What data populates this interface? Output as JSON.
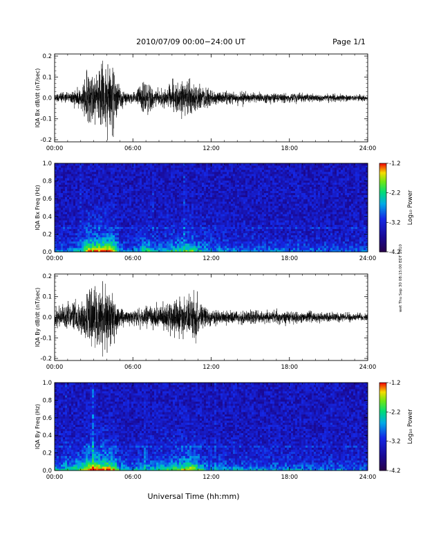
{
  "header": {
    "title": "2010/07/09  00:00−24:00 UT",
    "page": "Page 1/1"
  },
  "x_axis_title": "Universal Time (hh:mm)",
  "side_stamp": "wet Thu Sep 30 08:15:00 EDT 2010",
  "chart_data": [
    {
      "type": "line",
      "ylabel": "IQA Bx dB/dt (nT/sec)",
      "x_ticks": [
        "00:00",
        "06:00",
        "12:00",
        "18:00",
        "24:00"
      ],
      "y_ticks": [
        "-0.2",
        "-0.1",
        "0.0",
        "0.1",
        "0.2"
      ],
      "xlim": [
        0,
        24
      ],
      "ylim": [
        -0.21,
        0.21
      ],
      "series_envelope_hours": [
        0,
        1,
        2,
        2.6,
        3,
        3.5,
        4,
        4.5,
        5,
        5.5,
        6,
        6.5,
        7,
        7.5,
        8,
        8.5,
        9,
        9.5,
        10,
        10.5,
        11,
        11.5,
        12,
        13,
        14,
        15,
        16,
        17,
        18,
        19,
        20,
        21,
        22,
        23,
        24
      ],
      "series_envelope_amplitude": [
        0.03,
        0.035,
        0.06,
        0.2,
        0.17,
        0.2,
        0.21,
        0.2,
        0.06,
        0.035,
        0.03,
        0.06,
        0.12,
        0.06,
        0.05,
        0.06,
        0.09,
        0.1,
        0.11,
        0.13,
        0.08,
        0.07,
        0.05,
        0.04,
        0.035,
        0.035,
        0.03,
        0.03,
        0.028,
        0.028,
        0.025,
        0.025,
        0.022,
        0.02,
        0.02
      ]
    },
    {
      "type": "heatmap",
      "ylabel": "IQA Bx Freq (Hz)",
      "x_ticks": [
        "00:00",
        "06:00",
        "12:00",
        "18:00",
        "24:00"
      ],
      "y_ticks": [
        "0.0",
        "0.2",
        "0.4",
        "0.6",
        "0.8",
        "1.0"
      ],
      "xlim": [
        0,
        24
      ],
      "ylim": [
        0,
        1.0
      ],
      "colorbar": {
        "label": "Log₁₀ Power",
        "ticks": [
          "-1.2",
          "-2.2",
          "-3.2",
          "-4.2"
        ],
        "range": [
          -4.2,
          -1.2
        ]
      }
    },
    {
      "type": "line",
      "ylabel": "IQA By dB/dt (nT/sec)",
      "x_ticks": [
        "00:00",
        "06:00",
        "12:00",
        "18:00",
        "24:00"
      ],
      "y_ticks": [
        "-0.2",
        "-0.1",
        "0.0",
        "0.1",
        "0.2"
      ],
      "xlim": [
        0,
        24
      ],
      "ylim": [
        -0.21,
        0.21
      ],
      "series_envelope_hours": [
        0,
        1,
        2,
        2.6,
        3,
        3.5,
        4,
        4.5,
        5,
        5.5,
        6,
        6.5,
        7,
        7.5,
        8,
        8.5,
        9,
        9.5,
        10,
        10.5,
        11,
        11.5,
        12,
        13,
        14,
        15,
        16,
        17,
        18,
        19,
        20,
        21,
        22,
        23,
        24
      ],
      "series_envelope_amplitude": [
        0.06,
        0.08,
        0.12,
        0.19,
        0.2,
        0.21,
        0.2,
        0.18,
        0.07,
        0.05,
        0.05,
        0.06,
        0.08,
        0.07,
        0.08,
        0.09,
        0.12,
        0.13,
        0.15,
        0.17,
        0.12,
        0.07,
        0.05,
        0.045,
        0.04,
        0.04,
        0.04,
        0.045,
        0.04,
        0.035,
        0.035,
        0.03,
        0.03,
        0.028,
        0.025
      ]
    },
    {
      "type": "heatmap",
      "ylabel": "IQA By Freq (Hz)",
      "x_ticks": [
        "00:00",
        "06:00",
        "12:00",
        "18:00",
        "24:00"
      ],
      "y_ticks": [
        "0.0",
        "0.2",
        "0.4",
        "0.6",
        "0.8",
        "1.0"
      ],
      "xlim": [
        0,
        24
      ],
      "ylim": [
        0,
        1.0
      ],
      "colorbar": {
        "label": "Log₁₀ Power",
        "ticks": [
          "-1.2",
          "-2.2",
          "-3.2",
          "-4.2"
        ],
        "range": [
          -4.2,
          -1.2
        ]
      }
    }
  ]
}
